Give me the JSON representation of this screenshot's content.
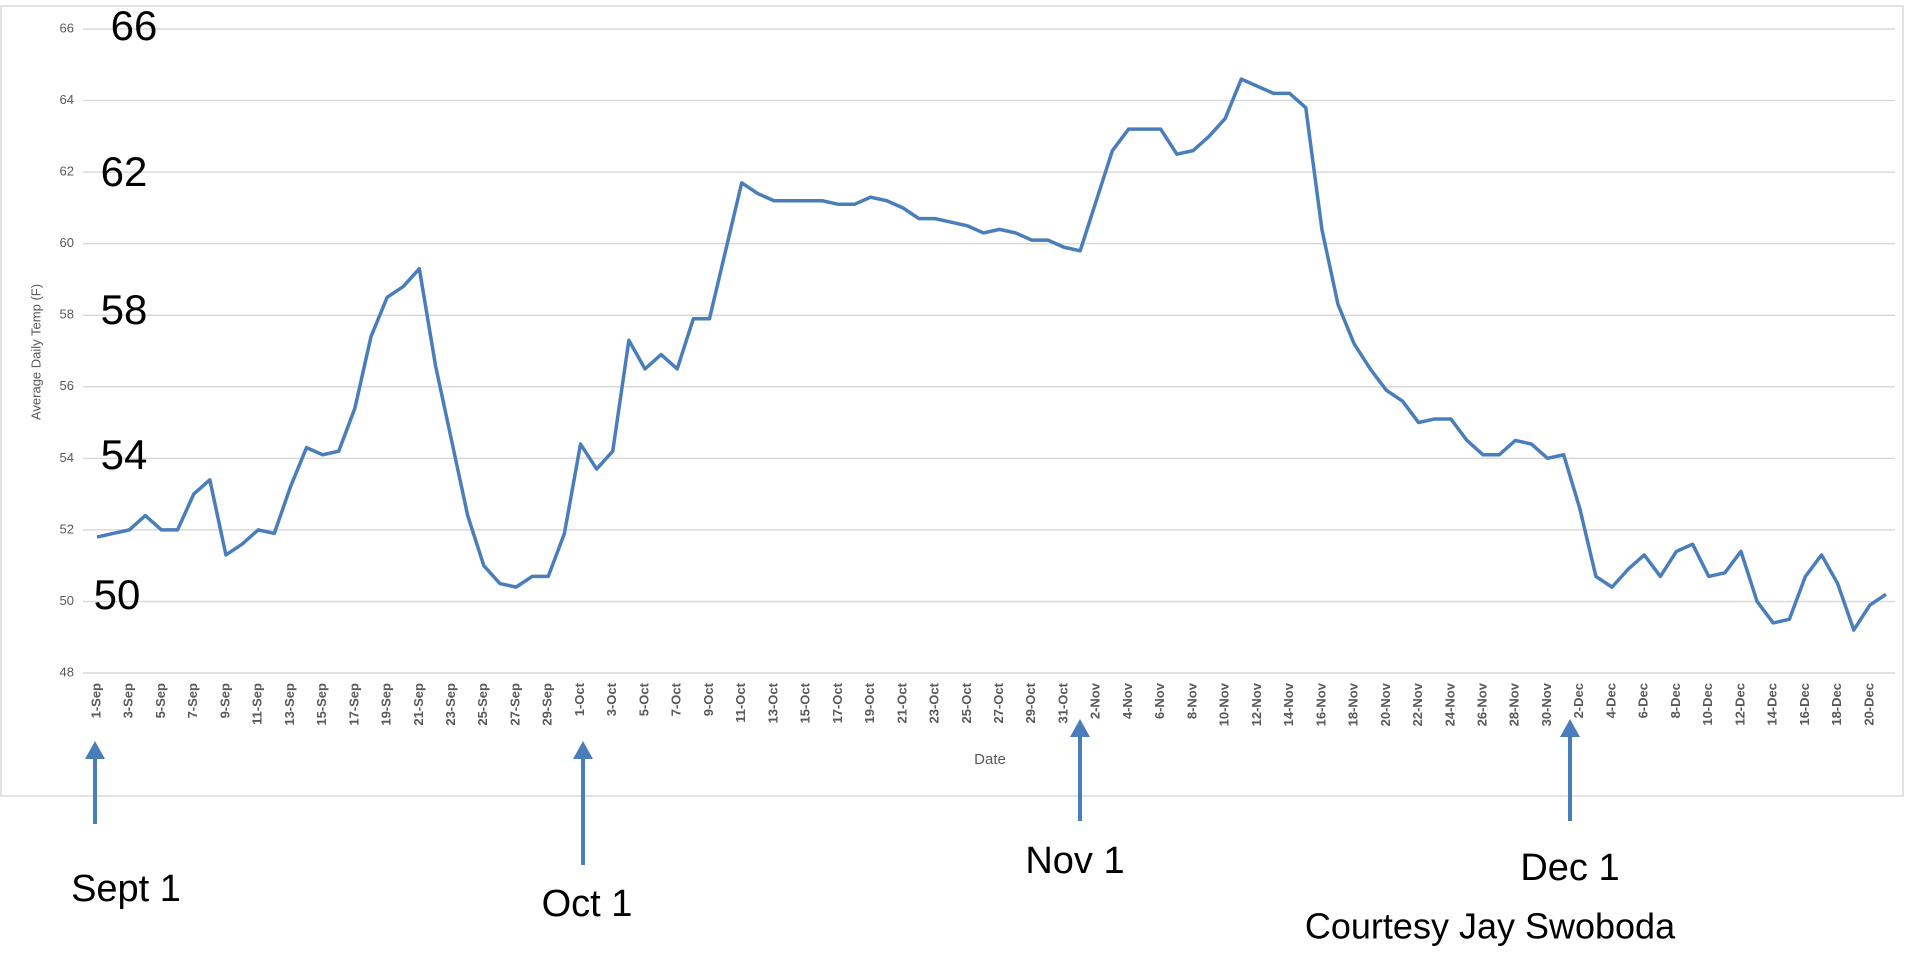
{
  "chart_data": {
    "type": "line",
    "y_label": "Average Daily Temp (F)",
    "x_label": "Date",
    "categories": [
      "1-Sep",
      null,
      "3-Sep",
      null,
      "5-Sep",
      null,
      "7-Sep",
      null,
      "9-Sep",
      null,
      "11-Sep",
      null,
      "13-Sep",
      null,
      "15-Sep",
      null,
      "17-Sep",
      null,
      "19-Sep",
      null,
      "21-Sep",
      null,
      "23-Sep",
      null,
      "25-Sep",
      null,
      "27-Sep",
      null,
      "29-Sep",
      null,
      "1-Oct",
      null,
      "3-Oct",
      null,
      "5-Oct",
      null,
      "7-Oct",
      null,
      "9-Oct",
      null,
      "11-Oct",
      null,
      "13-Oct",
      null,
      "15-Oct",
      null,
      "17-Oct",
      null,
      "19-Oct",
      null,
      "21-Oct",
      null,
      "23-Oct",
      null,
      "25-Oct",
      null,
      "27-Oct",
      null,
      "29-Oct",
      null,
      "31-Oct",
      null,
      "2-Nov",
      null,
      "4-Nov",
      null,
      "6-Nov",
      null,
      "8-Nov",
      null,
      "10-Nov",
      null,
      "12-Nov",
      null,
      "14-Nov",
      null,
      "16-Nov",
      null,
      "18-Nov",
      null,
      "20-Nov",
      null,
      "22-Nov",
      null,
      "24-Nov",
      null,
      "26-Nov",
      null,
      "28-Nov",
      null,
      "30-Nov",
      null,
      "2-Dec",
      null,
      "4-Dec",
      null,
      "6-Dec",
      null,
      "8-Dec",
      null,
      "10-Dec",
      null,
      "12-Dec",
      null,
      "14-Dec",
      null,
      "16-Dec",
      null,
      "18-Dec",
      null,
      "20-Dec",
      null
    ],
    "series": [
      {
        "color": "#4a7ebb",
        "values": [
          51.8,
          51.9,
          52.0,
          52.4,
          52.0,
          52.0,
          53.0,
          53.4,
          51.3,
          51.6,
          52.0,
          51.9,
          53.2,
          54.3,
          54.1,
          54.2,
          55.4,
          57.4,
          58.5,
          58.8,
          59.3,
          56.6,
          54.5,
          52.4,
          51.0,
          50.5,
          50.4,
          50.7,
          50.7,
          51.9,
          54.4,
          53.7,
          54.2,
          57.3,
          56.5,
          56.9,
          56.5,
          57.9,
          57.9,
          59.8,
          61.7,
          61.4,
          61.2,
          61.2,
          61.2,
          61.2,
          61.1,
          61.1,
          61.3,
          61.2,
          61.0,
          60.7,
          60.7,
          60.6,
          60.5,
          60.3,
          60.4,
          60.3,
          60.1,
          60.1,
          59.9,
          59.8,
          61.2,
          62.6,
          63.2,
          63.2,
          63.2,
          62.5,
          62.6,
          63.0,
          63.5,
          64.6,
          64.4,
          64.2,
          64.2,
          63.8,
          60.4,
          58.3,
          57.2,
          56.5,
          55.9,
          55.6,
          55.0,
          55.1,
          55.1,
          54.5,
          54.1,
          54.1,
          54.5,
          54.4,
          54.0,
          54.1,
          52.6,
          50.7,
          50.4,
          50.9,
          51.3,
          50.7,
          51.4,
          51.6,
          50.7,
          50.8,
          51.4,
          50.0,
          49.4,
          49.5,
          50.7,
          51.3,
          50.5,
          49.2,
          49.9,
          50.2
        ]
      }
    ],
    "ylim": [
      48,
      66
    ],
    "yticks": [
      48,
      50,
      52,
      54,
      56,
      58,
      60,
      62,
      64,
      66
    ],
    "grid": true,
    "annotations": [
      "66",
      "62",
      "58",
      "54",
      "50",
      "Sept 1",
      "Oct 1",
      "Nov 1",
      "Dec 1",
      "Courtesy Jay Swoboda"
    ]
  }
}
